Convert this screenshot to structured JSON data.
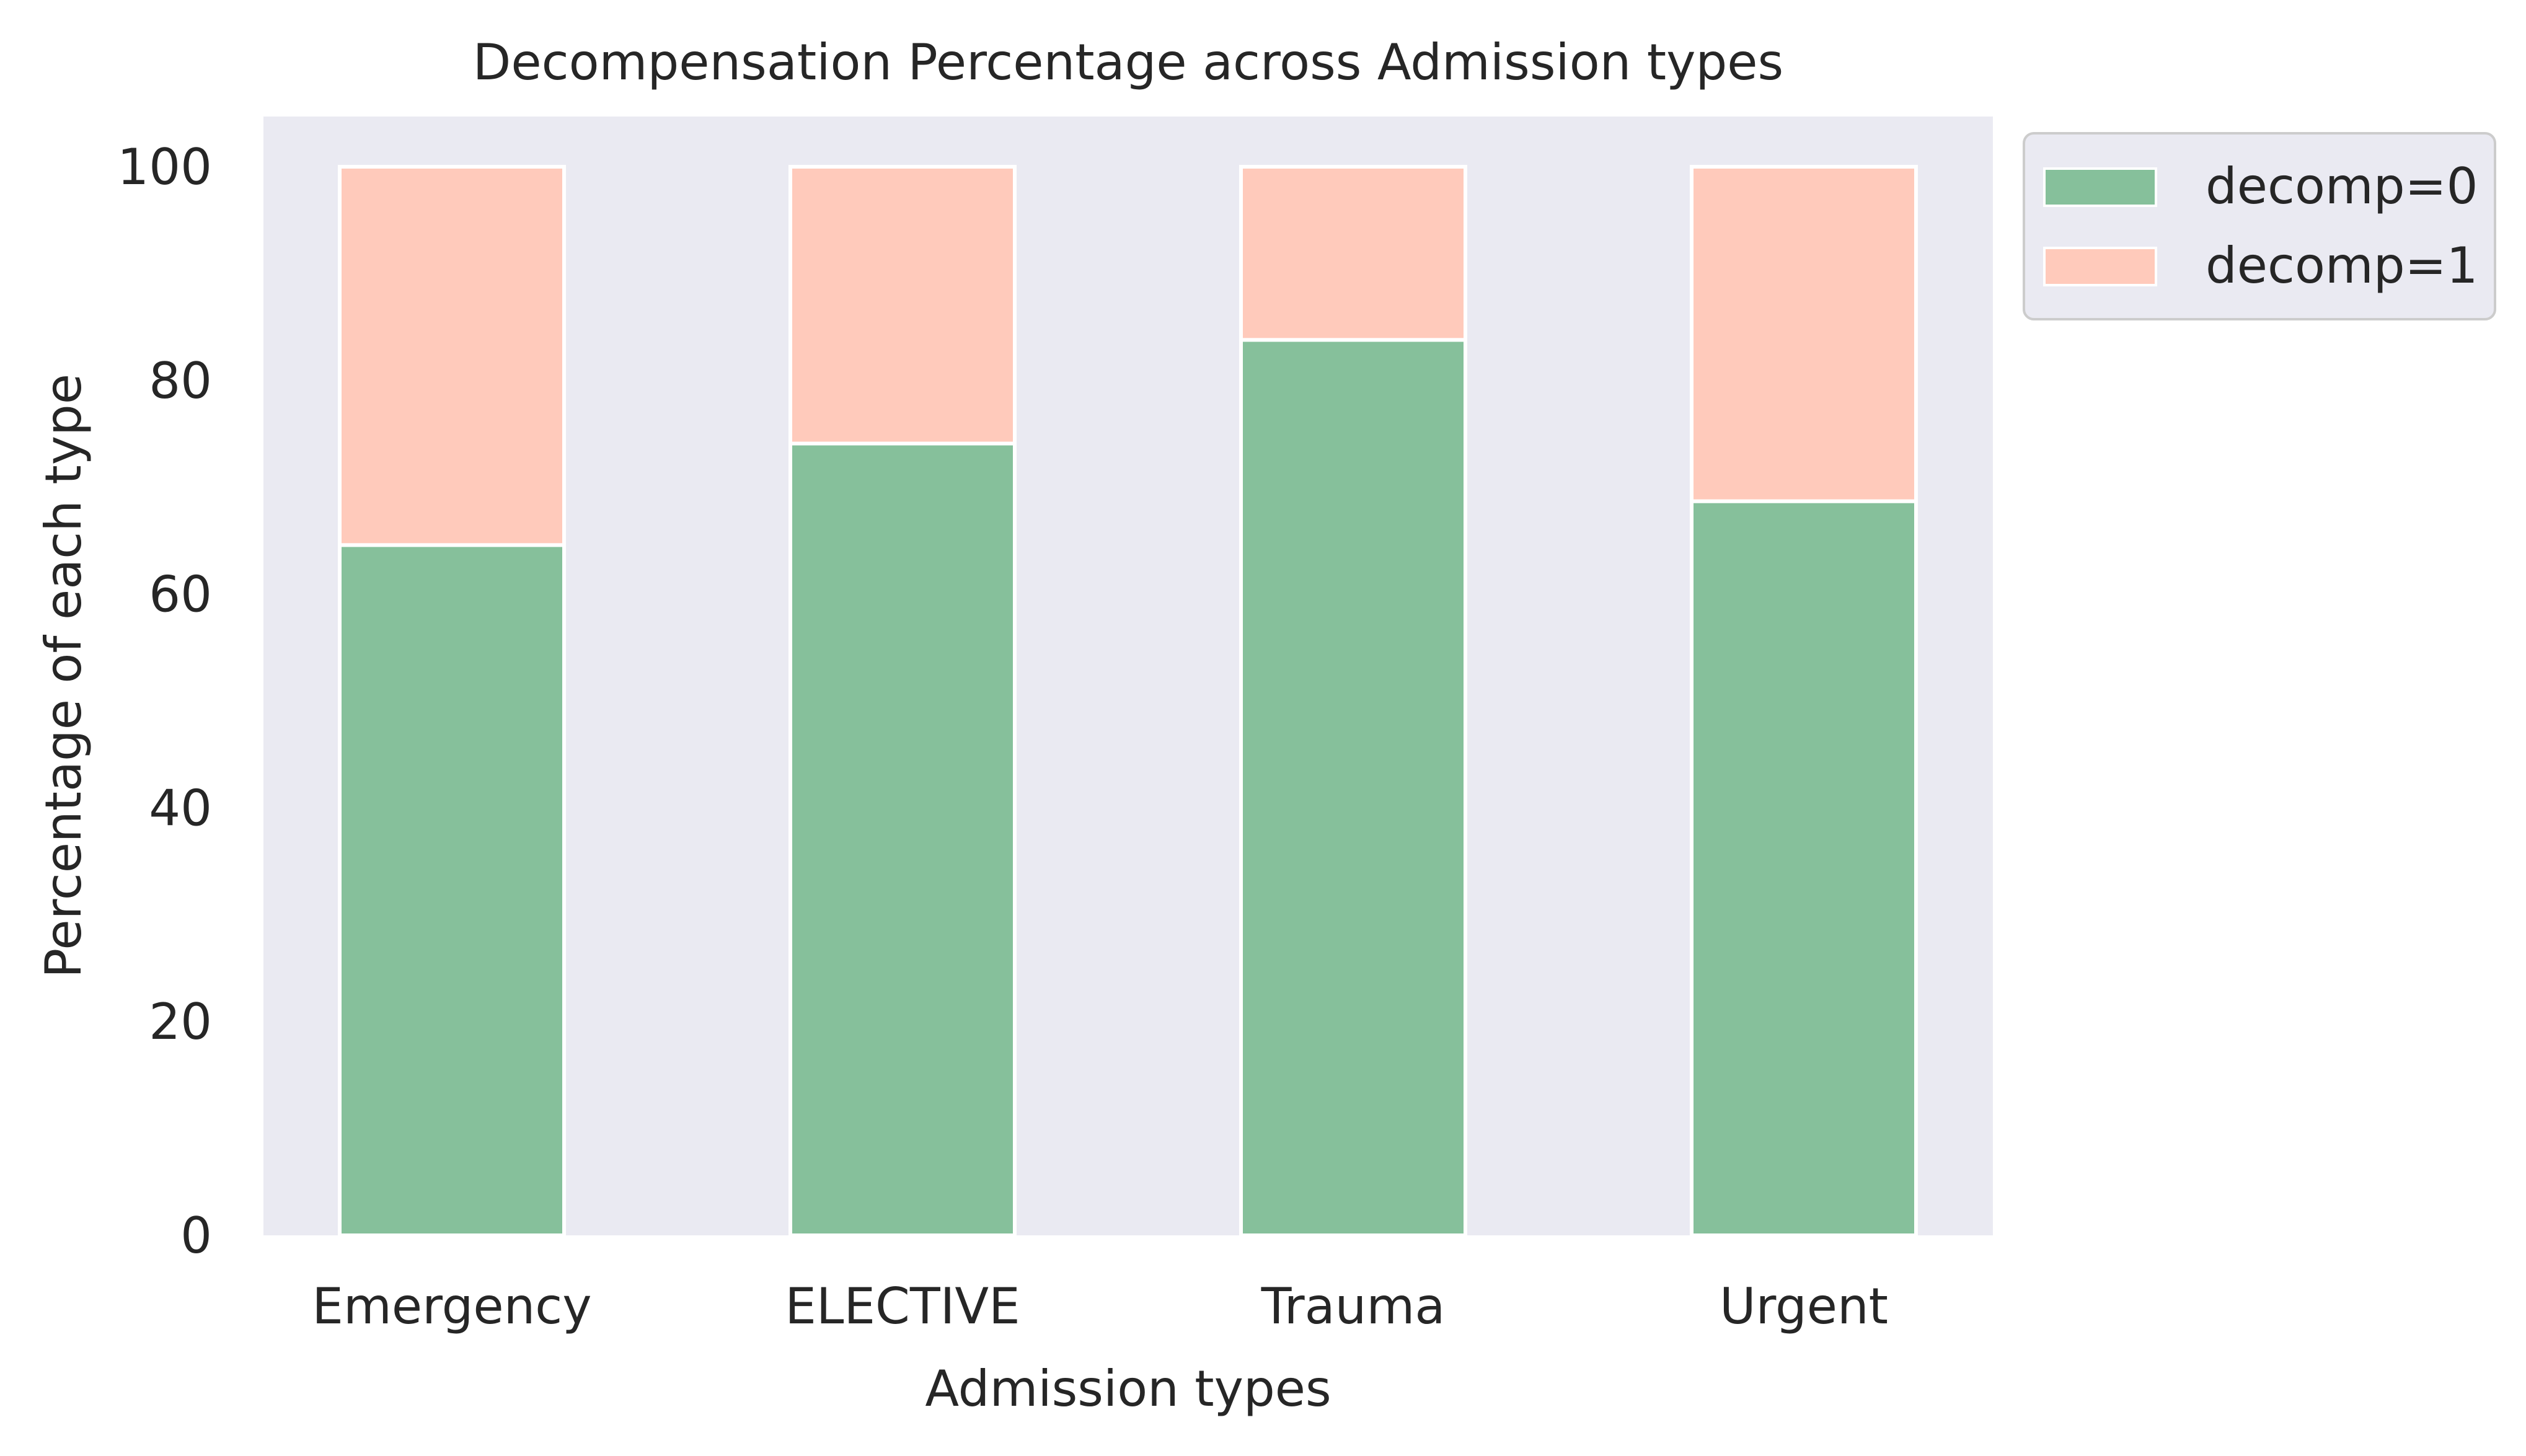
{
  "chart_data": {
    "type": "bar",
    "stacked": true,
    "title": "Decompensation Percentage across Admission types",
    "xlabel": "Admission types",
    "ylabel": "Percentage of each type",
    "categories": [
      "Emergency",
      "ELECTIVE",
      "Trauma",
      "Urgent"
    ],
    "series": [
      {
        "name": "decomp=0",
        "values": [
          64.6,
          74.1,
          83.8,
          68.7
        ],
        "color": "#86c09b"
      },
      {
        "name": "decomp=1",
        "values": [
          35.4,
          25.9,
          16.2,
          31.3
        ],
        "color": "#ffcabb"
      }
    ],
    "ylim": [
      0,
      104.7
    ],
    "yticks": [
      0,
      20,
      40,
      60,
      80,
      100
    ],
    "grid": false,
    "legend_position": "outside-top-right",
    "background_color": "#eaeaf2",
    "bar_edge_color": "#ffffff"
  }
}
